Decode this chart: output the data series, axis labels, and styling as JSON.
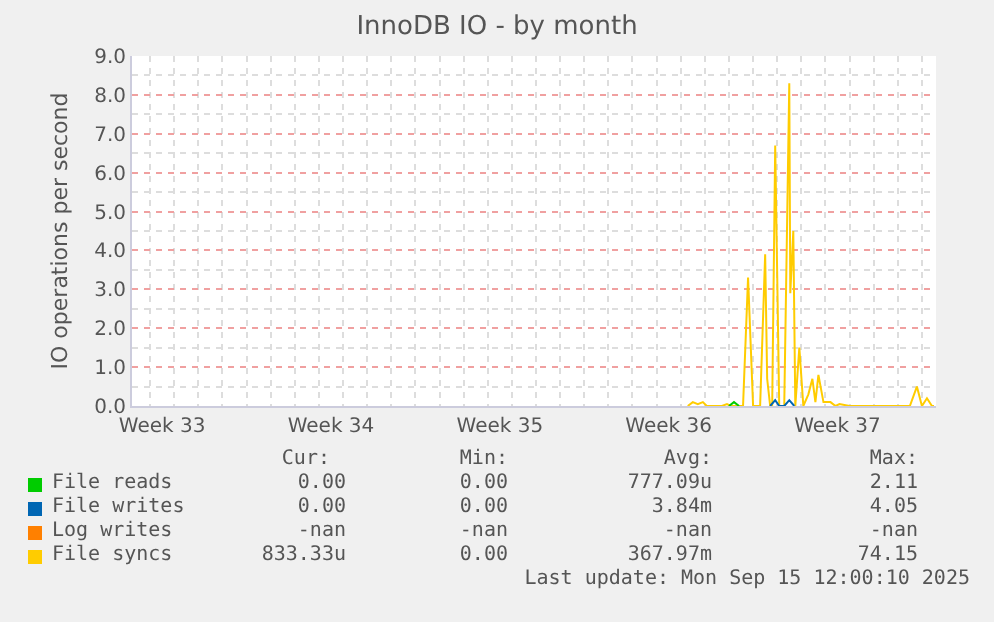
{
  "chart_data": {
    "type": "line",
    "title": "InnoDB IO - by month",
    "ylabel": "IO operations per second",
    "xlim": [
      "2025-08-13T06:00",
      "2025-09-15T14:00"
    ],
    "xticks": [
      {
        "value": "2025-08-14T12:00",
        "label": "Week 33"
      },
      {
        "value": "2025-08-21T12:00",
        "label": "Week 34"
      },
      {
        "value": "2025-08-28T12:00",
        "label": "Week 35"
      },
      {
        "value": "2025-09-04T12:00",
        "label": "Week 36"
      },
      {
        "value": "2025-09-11T12:00",
        "label": "Week 37"
      }
    ],
    "ylim": [
      0,
      9
    ],
    "yticks": [
      {
        "value": 0,
        "label": "0.0"
      },
      {
        "value": 1,
        "label": "1.0"
      },
      {
        "value": 2,
        "label": "2.0"
      },
      {
        "value": 3,
        "label": "3.0"
      },
      {
        "value": 4,
        "label": "4.0"
      },
      {
        "value": 5,
        "label": "5.0"
      },
      {
        "value": 6,
        "label": "6.0"
      },
      {
        "value": 7,
        "label": "7.0"
      },
      {
        "value": 8,
        "label": "8.0"
      },
      {
        "value": 9,
        "label": "9.0"
      }
    ],
    "grid": true,
    "legend": "bottom",
    "marker": "none",
    "line_style": "solid",
    "series": [
      {
        "name": "File reads",
        "color": "#00cc00",
        "x": [
          "2025-09-07T00:00",
          "2025-09-07T05:00",
          "2025-09-07T10:00"
        ],
        "values": [
          0,
          0.1,
          0
        ]
      },
      {
        "name": "File writes",
        "color": "#0066b3",
        "x": [
          "2025-09-08T17:00",
          "2025-09-08T22:00",
          "2025-09-09T02:00",
          "2025-09-09T07:00",
          "2025-09-09T12:00",
          "2025-09-09T17:00"
        ],
        "values": [
          0,
          0.15,
          0,
          0,
          0.15,
          0
        ]
      },
      {
        "name": "Log writes",
        "color": "#ff8000"
      },
      {
        "name": "File syncs",
        "color": "#ffcc00",
        "x": [
          "2025-09-05T07:00",
          "2025-09-05T12:00",
          "2025-09-05T17:00",
          "2025-09-05T22:00",
          "2025-09-06T02:00",
          "2025-09-06T17:00",
          "2025-09-06T22:00",
          "2025-09-07T02:00",
          "2025-09-07T14:00",
          "2025-09-07T19:00",
          "2025-09-08T00:00",
          "2025-09-08T07:00",
          "2025-09-08T12:00",
          "2025-09-08T14:00",
          "2025-09-08T17:00",
          "2025-09-08T19:00",
          "2025-09-08T22:00",
          "2025-09-09T02:00",
          "2025-09-09T07:00",
          "2025-09-09T12:00",
          "2025-09-09T13:00",
          "2025-09-09T16:00",
          "2025-09-09T18:00",
          "2025-09-09T22:00",
          "2025-09-10T02:00",
          "2025-09-10T07:00",
          "2025-09-10T11:00",
          "2025-09-10T14:00",
          "2025-09-10T17:00",
          "2025-09-10T22:00",
          "2025-09-11T00:00",
          "2025-09-11T05:00",
          "2025-09-11T10:00",
          "2025-09-11T14:00",
          "2025-09-12T00:00",
          "2025-09-12T07:00",
          "2025-09-12T14:00",
          "2025-09-14T12:00",
          "2025-09-14T19:00",
          "2025-09-15T00:00",
          "2025-09-15T05:00",
          "2025-09-15T10:00",
          "2025-09-15T12:00"
        ],
        "values": [
          0,
          0.1,
          0.05,
          0.1,
          0,
          0,
          0.05,
          0,
          0,
          3.3,
          0,
          0,
          3.9,
          0.7,
          0,
          0,
          6.7,
          0,
          0,
          8.3,
          2.9,
          4.5,
          0,
          1.5,
          0,
          0.3,
          0.7,
          0.1,
          0.8,
          0.1,
          0.1,
          0.1,
          0,
          0.05,
          0,
          0,
          0,
          0,
          0.5,
          0,
          0.2,
          0,
          0
        ]
      }
    ],
    "annotations": [
      "Cur:",
      "Min:",
      "Avg:",
      "Max:",
      "0.00",
      "0.00",
      "777.09u",
      "2.11",
      "0.00",
      "0.00",
      "3.84m",
      "4.05",
      "-nan",
      "-nan",
      "-nan",
      "-nan",
      "833.33u",
      "0.00",
      "367.97m",
      "74.15",
      "Last update: Mon Sep 15 12:00:10 2025"
    ]
  }
}
